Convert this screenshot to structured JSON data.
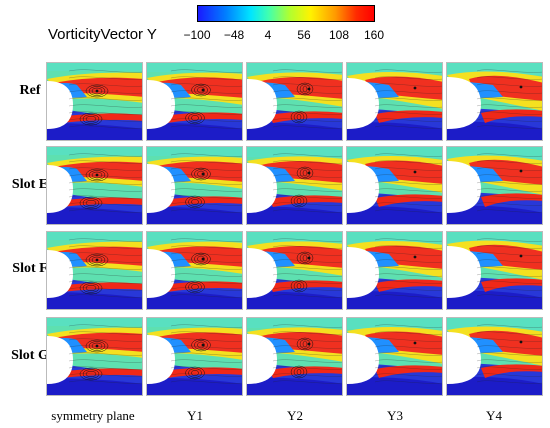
{
  "colorbar": {
    "title": "VorticityVector Y",
    "ticks": [
      "−100",
      "−48",
      "4",
      "56",
      "108",
      "160"
    ]
  },
  "rows": [
    "Ref",
    "Slot E",
    "Slot F",
    "Slot G"
  ],
  "columns": [
    "symmetry plane",
    "Y1",
    "Y2",
    "Y3",
    "Y4"
  ]
}
